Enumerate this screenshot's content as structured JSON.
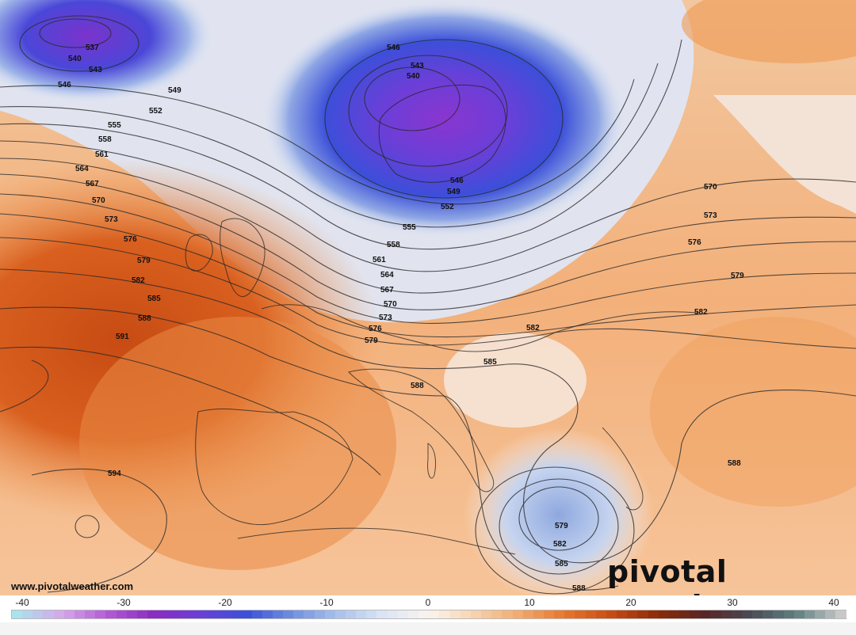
{
  "map": {
    "watermark_url": "www.pivotalweather.com",
    "brand": "pivotal weather",
    "contour_labels": [
      "537",
      "540",
      "543",
      "546",
      "549",
      "552",
      "555",
      "558",
      "561",
      "564",
      "567",
      "570",
      "573",
      "576",
      "579",
      "582",
      "585",
      "588",
      "591",
      "594"
    ],
    "colors": {
      "deep_purple": "#7a2fc9",
      "blue": "#3a4fd6",
      "light_blue": "#c9d7f0",
      "white": "#f7f4f2",
      "light_orange": "#f6cfa8",
      "orange": "#f08a3c",
      "dark_orange": "#d9541a"
    }
  },
  "colorbar": {
    "ticks": [
      "-40",
      "-30",
      "-20",
      "-10",
      "0",
      "10",
      "20",
      "30",
      "40"
    ],
    "stops": [
      "#a8e3ee",
      "#d6a6ea",
      "#b158d6",
      "#8a2bc1",
      "#6a3fd8",
      "#3c4fd9",
      "#6e8fe0",
      "#a9c1ec",
      "#dbe5f5",
      "#fbf4ee",
      "#f7d2ad",
      "#f3a86a",
      "#e7742b",
      "#c74b13",
      "#8c2b08",
      "#5a2424",
      "#4a4a55",
      "#5f7f7f",
      "#c8c8c8"
    ]
  }
}
